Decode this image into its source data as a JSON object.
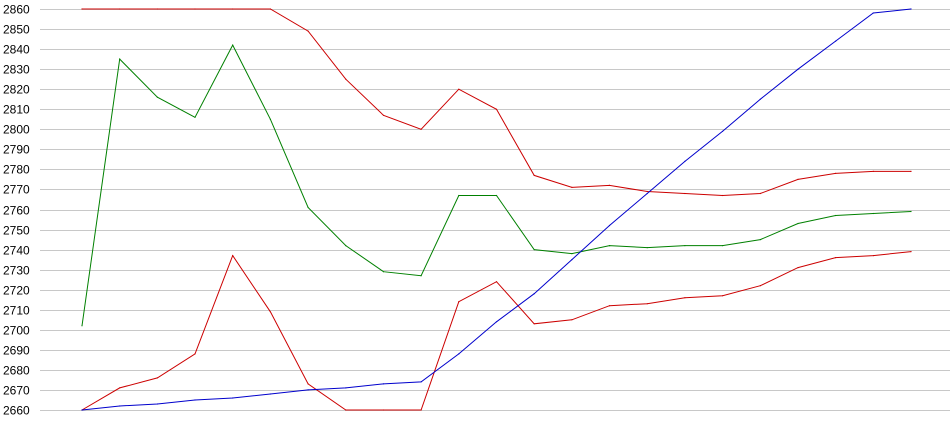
{
  "chart_data": {
    "type": "line",
    "title": "",
    "xlabel": "",
    "ylabel": "",
    "ylim": [
      2660,
      2860
    ],
    "grid": true,
    "legend": "none",
    "yticks": [
      2660,
      2670,
      2680,
      2690,
      2700,
      2710,
      2720,
      2730,
      2740,
      2750,
      2760,
      2770,
      2780,
      2790,
      2800,
      2810,
      2820,
      2830,
      2840,
      2850,
      2860
    ],
    "x": [
      0,
      1,
      2,
      3,
      4,
      5,
      6,
      7,
      8,
      9,
      10,
      11,
      12,
      13,
      14,
      15,
      16,
      17,
      18,
      19,
      20,
      21,
      22
    ],
    "series": [
      {
        "color": "#cc0000",
        "values": [
          2860,
          2860,
          2860,
          2860,
          2860,
          2860,
          2849,
          2825,
          2807,
          2800,
          2820,
          2810,
          2777,
          2771,
          2772,
          2769,
          2768,
          2767,
          2768,
          2775,
          2778,
          2779,
          2779
        ]
      },
      {
        "color": "#008000",
        "values": [
          2702,
          2835,
          2816,
          2806,
          2842,
          2805,
          2761,
          2742,
          2729,
          2727,
          2767,
          2767,
          2740,
          2738,
          2742,
          2741,
          2742,
          2742,
          2745,
          2753,
          2757,
          2758,
          2759
        ]
      },
      {
        "color": "#cc0000",
        "values": [
          2660,
          2671,
          2676,
          2688,
          2737,
          2709,
          2673,
          2660,
          2660,
          2660,
          2714,
          2724,
          2703,
          2705,
          2712,
          2713,
          2716,
          2717,
          2722,
          2731,
          2736,
          2737,
          2739
        ]
      },
      {
        "color": "#0000cc",
        "values": [
          2660,
          2662,
          2663,
          2665,
          2666,
          2668,
          2670,
          2671,
          2673,
          2674,
          2688,
          2704,
          2718,
          2735,
          2752,
          2768,
          2784,
          2799,
          2815,
          2830,
          2844,
          2858,
          2860
        ]
      }
    ]
  }
}
